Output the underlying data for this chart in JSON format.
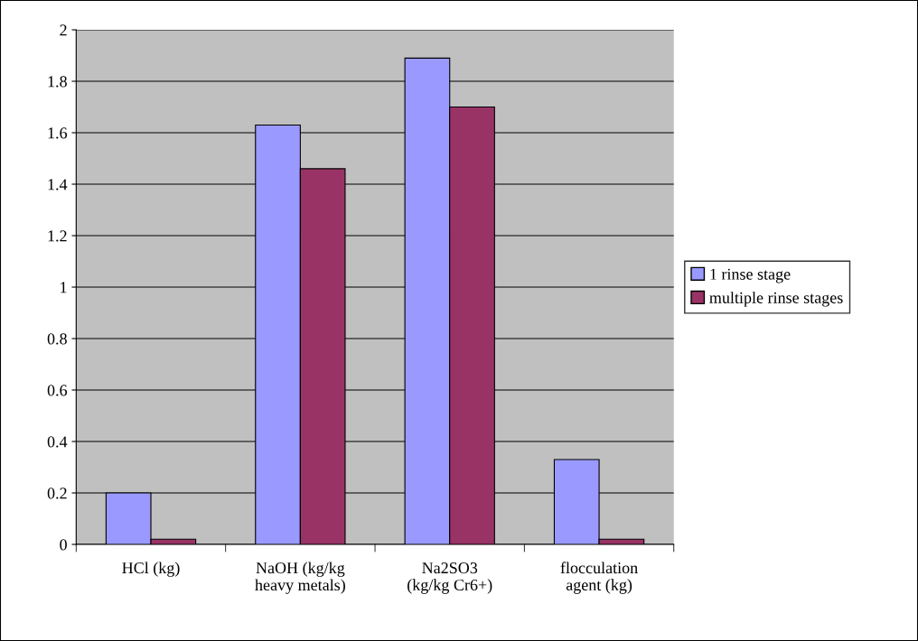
{
  "chart_data": {
    "type": "bar",
    "categories": [
      "HCl (kg)",
      "NaOH (kg/kg\nheavy metals)",
      "Na2SO3\n(kg/kg Cr6+)",
      "flocculation\nagent (kg)"
    ],
    "series": [
      {
        "name": "1 rinse stage",
        "color": "#9999ff",
        "values": [
          0.2,
          1.63,
          1.89,
          0.33
        ]
      },
      {
        "name": "multiple rinse stages",
        "color": "#993366",
        "values": [
          0.02,
          1.46,
          1.7,
          0.02
        ]
      }
    ],
    "ylim": [
      0,
      2
    ],
    "yticks": [
      0,
      0.2,
      0.4,
      0.6,
      0.8,
      1,
      1.2,
      1.4,
      1.6,
      1.8,
      2
    ],
    "grid": "y",
    "legend": "right"
  }
}
